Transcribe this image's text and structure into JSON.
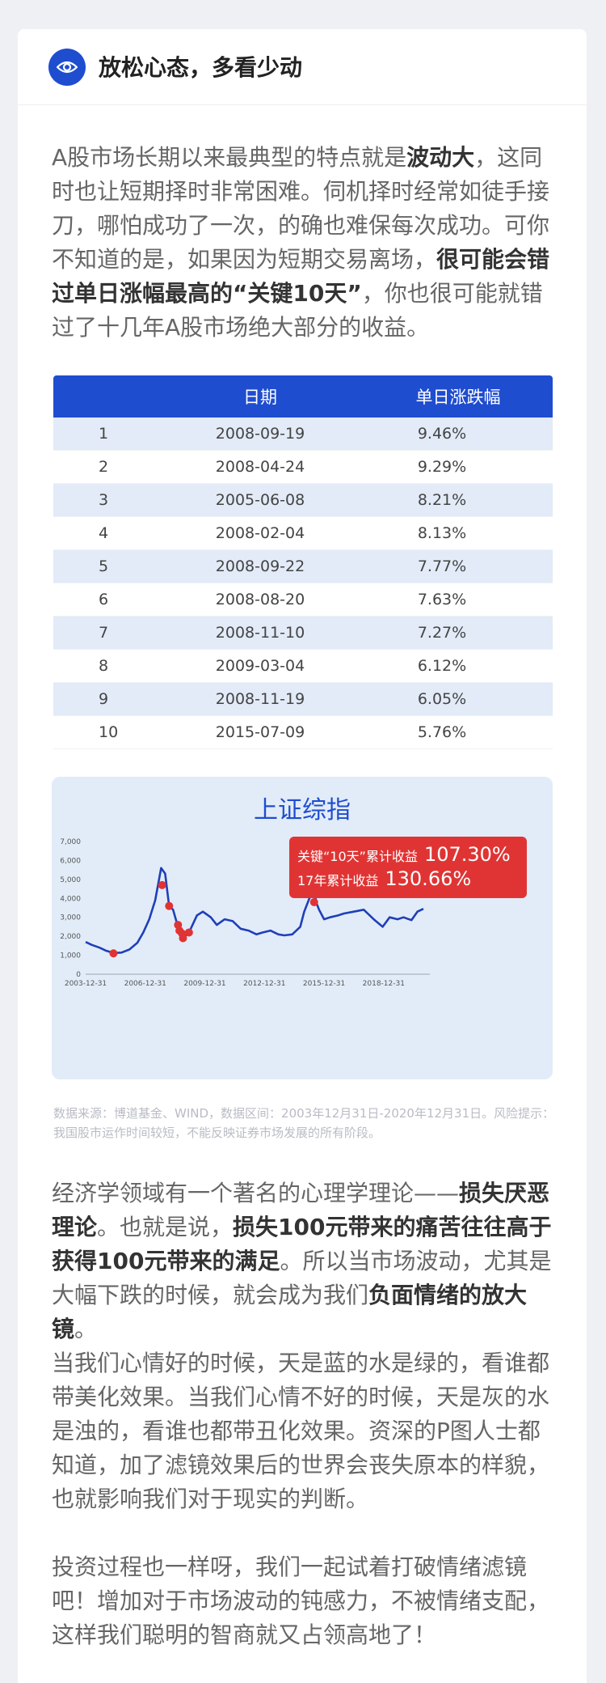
{
  "header": {
    "title": "放松心态，多看少动"
  },
  "intro": {
    "t1": "A股市场长期以来最典型的特点就是",
    "b1": "波动大",
    "t2": "，这同时也让短期择时非常困难。伺机择时经常如徒手接刀，哪怕成功了一次，的确也难保每次成功。可你不知道的是，如果因为短期交易离场，",
    "b2": "很可能会错过单日涨幅最高的“关键10天”",
    "t3": "，你也很可能就错过了十几年A股市场绝大部分的收益。"
  },
  "table": {
    "columns": [
      "",
      "日期",
      "单日涨跌幅"
    ],
    "rows": [
      [
        "1",
        "2008-09-19",
        "9.46%"
      ],
      [
        "2",
        "2008-04-24",
        "9.29%"
      ],
      [
        "3",
        "2005-06-08",
        "8.21%"
      ],
      [
        "4",
        "2008-02-04",
        "8.13%"
      ],
      [
        "5",
        "2008-09-22",
        "7.77%"
      ],
      [
        "6",
        "2008-08-20",
        "7.63%"
      ],
      [
        "7",
        "2008-11-10",
        "7.27%"
      ],
      [
        "8",
        "2009-03-04",
        "6.12%"
      ],
      [
        "9",
        "2008-11-19",
        "6.05%"
      ],
      [
        "10",
        "2015-07-09",
        "5.76%"
      ]
    ]
  },
  "chart_badge": {
    "label1": "关键“10天”累计收益",
    "value1": "107.30%",
    "label2": "17年累计收益",
    "value2": "130.66%"
  },
  "chart_data": {
    "type": "line",
    "title": "上证综指",
    "y_ticks": [
      "0",
      "1,000",
      "2,000",
      "3,000",
      "4,000",
      "5,000",
      "6,000",
      "7,000"
    ],
    "x_ticks": [
      "2003-12-31",
      "2006-12-31",
      "2009-12-31",
      "2012-12-31",
      "2015-12-31",
      "2018-12-31"
    ],
    "ylim": [
      0,
      7000
    ],
    "xlim": [
      2004.0,
      2021.0
    ],
    "series": [
      {
        "x": [
          2004.0,
          2004.3,
          2004.7,
          2005.0,
          2005.4,
          2005.8,
          2006.2,
          2006.6,
          2006.9,
          2007.2,
          2007.5,
          2007.8,
          2008.0,
          2008.2,
          2008.4,
          2008.7,
          2008.9,
          2009.2,
          2009.6,
          2009.9,
          2010.3,
          2010.6,
          2011.0,
          2011.4,
          2011.8,
          2012.2,
          2012.6,
          2012.9,
          2013.3,
          2013.7,
          2014.0,
          2014.4,
          2014.8,
          2015.0,
          2015.3,
          2015.45,
          2015.6,
          2015.75,
          2016.0,
          2016.3,
          2016.7,
          2017.0,
          2017.5,
          2018.0,
          2018.5,
          2018.95,
          2019.3,
          2019.7,
          2020.0,
          2020.4,
          2020.7,
          2021.0
        ],
        "y": [
          1700,
          1550,
          1400,
          1250,
          1120,
          1140,
          1300,
          1650,
          2200,
          2900,
          3900,
          5600,
          5300,
          3600,
          3400,
          2300,
          1900,
          2200,
          3100,
          3300,
          3000,
          2600,
          2900,
          2800,
          2400,
          2300,
          2100,
          2200,
          2300,
          2100,
          2050,
          2100,
          2500,
          3300,
          4100,
          5000,
          3800,
          3400,
          2900,
          3000,
          3100,
          3200,
          3300,
          3400,
          2900,
          2500,
          3000,
          2900,
          3000,
          2850,
          3300,
          3450
        ]
      }
    ],
    "highlight_points": [
      {
        "x": 2005.4,
        "y": 1100
      },
      {
        "x": 2007.85,
        "y": 4700
      },
      {
        "x": 2008.2,
        "y": 3600
      },
      {
        "x": 2008.65,
        "y": 2600
      },
      {
        "x": 2008.72,
        "y": 2300
      },
      {
        "x": 2008.85,
        "y": 2150
      },
      {
        "x": 2008.9,
        "y": 1900
      },
      {
        "x": 2009.2,
        "y": 2200
      },
      {
        "x": 2015.5,
        "y": 3800
      }
    ]
  },
  "source": {
    "text": "数据来源：博道基金、WIND，数据区间：2003年12月31日-2020年12月31日。风险提示：我国股市运作时间较短，不能反映证券市场发展的所有阶段。"
  },
  "para2": {
    "t1": "经济学领域有一个著名的心理学理论——",
    "b1": "损失厌恶理论",
    "t2": "。也就是说，",
    "b2": "损失100元带来的痛苦往往高于获得100元带来的满足",
    "t3": "。所以当市场波动，尤其是大幅下跌的时候，就会成为我们",
    "b3": "负面情绪的放大镜",
    "t4": "。"
  },
  "para3": {
    "text": "当我们心情好的时候，天是蓝的水是绿的，看谁都带美化效果。当我们心情不好的时候，天是灰的水是浊的，看谁也都带丑化效果。资深的P图人士都知道，加了滤镜效果后的世界会丧失原本的样貌，也就影响我们对于现实的判断。"
  },
  "para4": {
    "text": "投资过程也一样呀，我们一起试着打破情绪滤镜吧！增加对于市场波动的钝感力，不被情绪支配，这样我们聪明的智商就又占领高地了！"
  },
  "colors": {
    "accent": "#1f4dcf",
    "badge": "#e03434",
    "row_alt": "#e2ebf7",
    "chart_bg": "#e2ecf8"
  },
  "icons": {
    "header": "eye-icon"
  }
}
